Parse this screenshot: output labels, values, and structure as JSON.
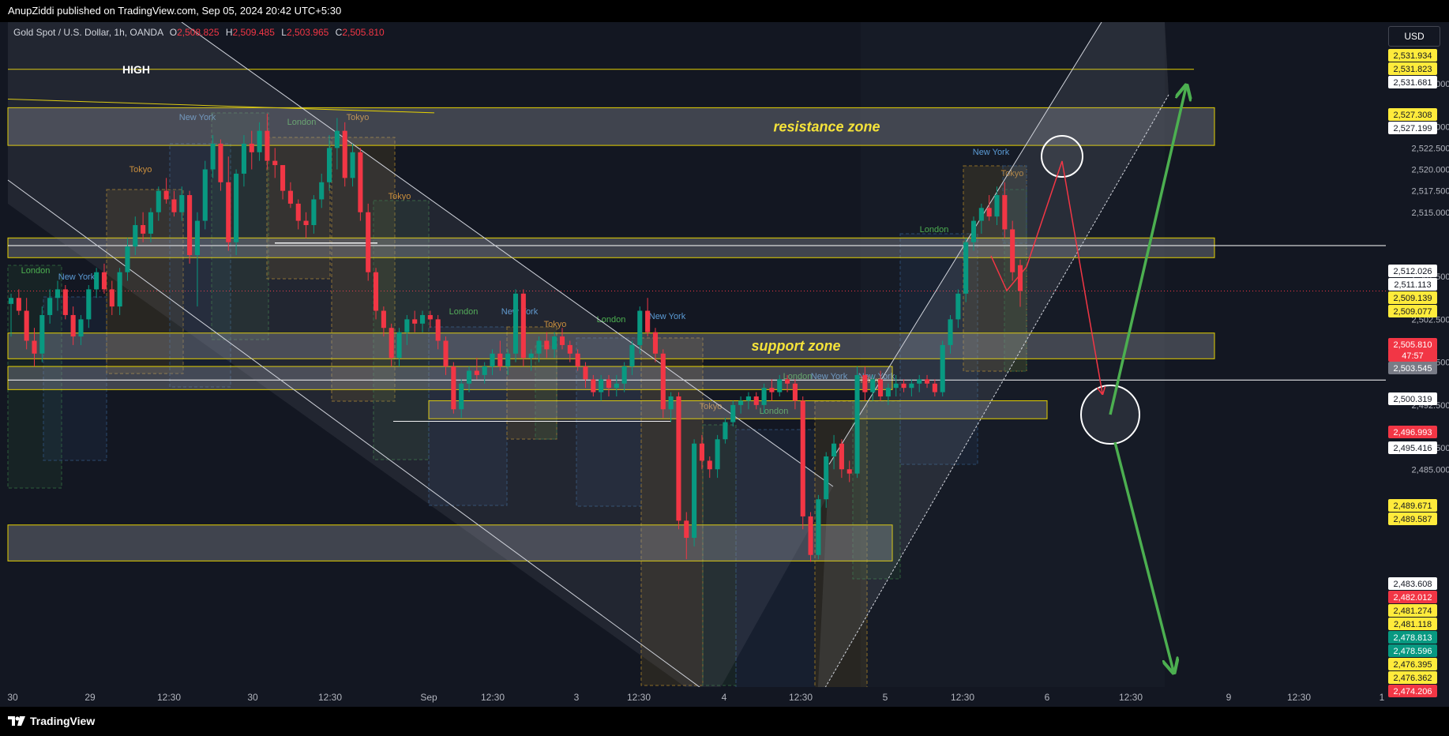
{
  "header": {
    "published_text": "AnupZiddi published on TradingView.com, Sep 05, 2024 20:42 UTC+5:30"
  },
  "symbol_bar": {
    "title": "Gold Spot / U.S. Dollar, 1h, OANDA",
    "open_label": "O",
    "open": "2,508.825",
    "high_label": "H",
    "high": "2,509.485",
    "low_label": "L",
    "low": "2,503.965",
    "close_label": "C",
    "close": "2,505.810"
  },
  "currency": "USD",
  "footer": {
    "brand": "TradingView"
  },
  "colors": {
    "background": "#131722",
    "up": "#089981",
    "down": "#f23645",
    "zone_border": "#e6d200",
    "annotation_text": "#f5e33a",
    "arrow_green": "#4caf50",
    "arrow_red": "#f23645"
  },
  "chart_data": {
    "type": "candlestick",
    "symbol": "Gold Spot / U.S. Dollar",
    "interval": "1h",
    "exchange": "OANDA",
    "y_ticks": [
      "2,530.000",
      "2,525.000",
      "2,522.500",
      "2,520.000",
      "2,517.500",
      "2,515.000",
      "2,507.500",
      "2,502.500",
      "2,497.500",
      "2,492.500",
      "2,487.500",
      "2,485.000"
    ],
    "x_ticks": [
      "30",
      "29",
      "12:30",
      "30",
      "12:30",
      "Sep",
      "12:30",
      "3",
      "12:30",
      "4",
      "12:30",
      "5",
      "12:30",
      "6",
      "12:30",
      "9",
      "12:30",
      "1"
    ],
    "price_labels": [
      {
        "text": "2,531.934",
        "style": "yellow"
      },
      {
        "text": "2,531.823",
        "style": "yellow"
      },
      {
        "text": "2,531.681",
        "style": "white"
      },
      {
        "text": "2,527.308",
        "style": "yellow"
      },
      {
        "text": "2,527.199",
        "style": "white"
      },
      {
        "text": "2,512.026",
        "style": "white"
      },
      {
        "text": "2,511.113",
        "style": "white"
      },
      {
        "text": "2,509.139",
        "style": "yellow"
      },
      {
        "text": "2,509.077",
        "style": "yellow"
      },
      {
        "text": "2,505.810",
        "style": "red"
      },
      {
        "text": "47:57",
        "style": "red"
      },
      {
        "text": "2,503.545",
        "style": "gray"
      },
      {
        "text": "2,500.319",
        "style": "white"
      },
      {
        "text": "2,496.993",
        "style": "red"
      },
      {
        "text": "2,495.416",
        "style": "white"
      },
      {
        "text": "2,489.671",
        "style": "yellow"
      },
      {
        "text": "2,489.587",
        "style": "yellow"
      },
      {
        "text": "2,483.608",
        "style": "white"
      },
      {
        "text": "2,482.012",
        "style": "red"
      },
      {
        "text": "2,481.274",
        "style": "yellow"
      },
      {
        "text": "2,481.118",
        "style": "yellow"
      },
      {
        "text": "2,478.813",
        "style": "green"
      },
      {
        "text": "2,478.596",
        "style": "green"
      },
      {
        "text": "2,476.395",
        "style": "yellow"
      },
      {
        "text": "2,476.362",
        "style": "yellow"
      },
      {
        "text": "2,474.206",
        "style": "red"
      }
    ],
    "zones": [
      {
        "name": "resistance zone",
        "top": 2527.2,
        "bottom": 2522.8,
        "label": "resistance zone"
      },
      {
        "name": "mid zone",
        "top": 2512.0,
        "bottom": 2509.7,
        "label": ""
      },
      {
        "name": "support zone",
        "top": 2500.9,
        "bottom": 2497.9,
        "label": "support zone"
      },
      {
        "name": "lower band",
        "top": 2497.0,
        "bottom": 2494.3,
        "label": ""
      },
      {
        "name": "low zone 1",
        "top": 2493.0,
        "bottom": 2490.9,
        "label": ""
      },
      {
        "name": "bottom zone",
        "top": 2478.5,
        "bottom": 2474.3,
        "label": ""
      }
    ],
    "annotations": {
      "high_label": "HIGH",
      "resistance_label": "resistance zone",
      "support_label": "support zone"
    },
    "sessions": [
      {
        "label": "London",
        "kind": "london"
      },
      {
        "label": "New York",
        "kind": "newyork"
      },
      {
        "label": "Tokyo",
        "kind": "tokyo"
      },
      {
        "label": "New York",
        "kind": "newyork"
      },
      {
        "label": "London",
        "kind": "london"
      },
      {
        "label": "Tokyo",
        "kind": "tokyo"
      },
      {
        "label": "Tokyo",
        "kind": "tokyo"
      },
      {
        "label": "London",
        "kind": "london"
      },
      {
        "label": "New York",
        "kind": "newyork"
      },
      {
        "label": "Tokyo",
        "kind": "tokyo"
      },
      {
        "label": "London",
        "kind": "london"
      },
      {
        "label": "New York",
        "kind": "newyork"
      },
      {
        "label": "Tokyo",
        "kind": "tokyo"
      },
      {
        "label": "London",
        "kind": "london"
      },
      {
        "label": "New York",
        "kind": "newyork"
      },
      {
        "label": "Tokyo",
        "kind": "tokyo"
      },
      {
        "label": "London",
        "kind": "london"
      },
      {
        "label": "New York",
        "kind": "newyork"
      },
      {
        "label": "Tokyo",
        "kind": "tokyo"
      },
      {
        "label": "London",
        "kind": "london"
      },
      {
        "label": "New York",
        "kind": "newyork"
      }
    ],
    "candles": [
      {
        "o": 2504.3,
        "h": 2505.5,
        "l": 2500.5,
        "c": 2505.0
      },
      {
        "o": 2505.0,
        "h": 2506.0,
        "l": 2503.0,
        "c": 2503.5
      },
      {
        "o": 2503.5,
        "h": 2505.0,
        "l": 2499.0,
        "c": 2500.0
      },
      {
        "o": 2500.0,
        "h": 2501.5,
        "l": 2497.0,
        "c": 2498.5
      },
      {
        "o": 2498.5,
        "h": 2504.0,
        "l": 2497.5,
        "c": 2503.0
      },
      {
        "o": 2503.0,
        "h": 2506.0,
        "l": 2502.0,
        "c": 2505.0
      },
      {
        "o": 2505.0,
        "h": 2507.0,
        "l": 2503.5,
        "c": 2506.0
      },
      {
        "o": 2506.0,
        "h": 2506.5,
        "l": 2502.5,
        "c": 2503.0
      },
      {
        "o": 2503.0,
        "h": 2504.0,
        "l": 2499.5,
        "c": 2500.5
      },
      {
        "o": 2500.5,
        "h": 2503.0,
        "l": 2499.5,
        "c": 2502.5
      },
      {
        "o": 2502.5,
        "h": 2506.5,
        "l": 2501.5,
        "c": 2506.0
      },
      {
        "o": 2506.0,
        "h": 2508.5,
        "l": 2505.0,
        "c": 2508.0
      },
      {
        "o": 2508.0,
        "h": 2509.0,
        "l": 2505.5,
        "c": 2506.0
      },
      {
        "o": 2506.0,
        "h": 2507.0,
        "l": 2503.0,
        "c": 2504.0
      },
      {
        "o": 2504.0,
        "h": 2508.5,
        "l": 2503.0,
        "c": 2508.0
      },
      {
        "o": 2508.0,
        "h": 2512.0,
        "l": 2507.0,
        "c": 2511.0
      },
      {
        "o": 2511.0,
        "h": 2514.5,
        "l": 2510.0,
        "c": 2513.5
      },
      {
        "o": 2513.5,
        "h": 2515.0,
        "l": 2511.5,
        "c": 2512.5
      },
      {
        "o": 2512.5,
        "h": 2515.5,
        "l": 2511.5,
        "c": 2515.0
      },
      {
        "o": 2515.0,
        "h": 2518.0,
        "l": 2514.0,
        "c": 2517.5
      },
      {
        "o": 2517.5,
        "h": 2519.0,
        "l": 2516.0,
        "c": 2516.5
      },
      {
        "o": 2516.5,
        "h": 2517.5,
        "l": 2514.5,
        "c": 2515.0
      },
      {
        "o": 2515.0,
        "h": 2518.0,
        "l": 2514.0,
        "c": 2517.0
      },
      {
        "o": 2517.0,
        "h": 2517.5,
        "l": 2509.0,
        "c": 2510.0
      },
      {
        "o": 2510.0,
        "h": 2515.0,
        "l": 2504.0,
        "c": 2514.0
      },
      {
        "o": 2514.0,
        "h": 2521.0,
        "l": 2513.0,
        "c": 2520.0
      },
      {
        "o": 2520.0,
        "h": 2524.0,
        "l": 2519.0,
        "c": 2523.0
      },
      {
        "o": 2523.0,
        "h": 2523.5,
        "l": 2517.5,
        "c": 2518.5
      },
      {
        "o": 2518.5,
        "h": 2521.5,
        "l": 2510.5,
        "c": 2511.5
      },
      {
        "o": 2511.5,
        "h": 2520.0,
        "l": 2510.0,
        "c": 2519.5
      },
      {
        "o": 2519.5,
        "h": 2524.0,
        "l": 2518.0,
        "c": 2523.0
      },
      {
        "o": 2523.0,
        "h": 2524.5,
        "l": 2520.0,
        "c": 2522.0
      },
      {
        "o": 2522.0,
        "h": 2525.5,
        "l": 2521.0,
        "c": 2524.5
      },
      {
        "o": 2524.5,
        "h": 2526.5,
        "l": 2520.0,
        "c": 2521.0
      },
      {
        "o": 2521.0,
        "h": 2522.5,
        "l": 2519.0,
        "c": 2520.5
      },
      {
        "o": 2520.5,
        "h": 2520.5,
        "l": 2516.5,
        "c": 2517.5
      },
      {
        "o": 2517.5,
        "h": 2518.5,
        "l": 2515.5,
        "c": 2516.0
      },
      {
        "o": 2516.0,
        "h": 2516.5,
        "l": 2513.0,
        "c": 2514.0
      },
      {
        "o": 2514.0,
        "h": 2515.0,
        "l": 2512.0,
        "c": 2513.5
      },
      {
        "o": 2513.5,
        "h": 2517.0,
        "l": 2512.5,
        "c": 2516.5
      },
      {
        "o": 2516.5,
        "h": 2519.5,
        "l": 2515.5,
        "c": 2518.5
      },
      {
        "o": 2518.5,
        "h": 2524.0,
        "l": 2517.5,
        "c": 2522.5
      },
      {
        "o": 2522.5,
        "h": 2526.0,
        "l": 2520.0,
        "c": 2524.5
      },
      {
        "o": 2524.5,
        "h": 2525.5,
        "l": 2518.0,
        "c": 2519.0
      },
      {
        "o": 2519.0,
        "h": 2523.0,
        "l": 2518.0,
        "c": 2522.0
      },
      {
        "o": 2522.0,
        "h": 2522.5,
        "l": 2514.0,
        "c": 2515.0
      },
      {
        "o": 2515.0,
        "h": 2516.0,
        "l": 2507.0,
        "c": 2508.0
      },
      {
        "o": 2508.0,
        "h": 2508.5,
        "l": 2502.5,
        "c": 2503.5
      },
      {
        "o": 2503.5,
        "h": 2504.0,
        "l": 2500.5,
        "c": 2501.5
      },
      {
        "o": 2501.5,
        "h": 2502.0,
        "l": 2497.0,
        "c": 2498.0
      },
      {
        "o": 2498.0,
        "h": 2501.5,
        "l": 2497.0,
        "c": 2501.0
      },
      {
        "o": 2501.0,
        "h": 2503.0,
        "l": 2499.5,
        "c": 2502.5
      },
      {
        "o": 2502.5,
        "h": 2503.5,
        "l": 2501.0,
        "c": 2502.0
      },
      {
        "o": 2502.0,
        "h": 2503.5,
        "l": 2501.0,
        "c": 2503.0
      },
      {
        "o": 2503.0,
        "h": 2503.5,
        "l": 2501.5,
        "c": 2502.5
      },
      {
        "o": 2502.5,
        "h": 2503.0,
        "l": 2499.0,
        "c": 2500.0
      },
      {
        "o": 2500.0,
        "h": 2500.5,
        "l": 2496.0,
        "c": 2497.0
      },
      {
        "o": 2497.0,
        "h": 2497.5,
        "l": 2491.5,
        "c": 2492.0
      },
      {
        "o": 2492.0,
        "h": 2495.5,
        "l": 2491.0,
        "c": 2495.0
      },
      {
        "o": 2495.0,
        "h": 2497.0,
        "l": 2494.0,
        "c": 2496.5
      },
      {
        "o": 2496.5,
        "h": 2498.0,
        "l": 2495.5,
        "c": 2496.0
      },
      {
        "o": 2496.0,
        "h": 2497.5,
        "l": 2495.0,
        "c": 2497.0
      },
      {
        "o": 2497.0,
        "h": 2499.0,
        "l": 2496.0,
        "c": 2498.5
      },
      {
        "o": 2498.5,
        "h": 2500.0,
        "l": 2496.5,
        "c": 2497.0
      },
      {
        "o": 2497.0,
        "h": 2499.0,
        "l": 2496.0,
        "c": 2498.5
      },
      {
        "o": 2498.5,
        "h": 2506.0,
        "l": 2497.5,
        "c": 2505.5
      },
      {
        "o": 2505.5,
        "h": 2506.0,
        "l": 2497.0,
        "c": 2498.0
      },
      {
        "o": 2498.0,
        "h": 2499.0,
        "l": 2496.5,
        "c": 2498.5
      },
      {
        "o": 2498.5,
        "h": 2500.5,
        "l": 2497.5,
        "c": 2500.0
      },
      {
        "o": 2500.0,
        "h": 2501.0,
        "l": 2498.0,
        "c": 2499.0
      },
      {
        "o": 2499.0,
        "h": 2501.0,
        "l": 2498.0,
        "c": 2500.5
      },
      {
        "o": 2500.5,
        "h": 2501.5,
        "l": 2499.0,
        "c": 2499.5
      },
      {
        "o": 2499.5,
        "h": 2500.0,
        "l": 2497.5,
        "c": 2498.5
      },
      {
        "o": 2498.5,
        "h": 2499.0,
        "l": 2496.5,
        "c": 2497.0
      },
      {
        "o": 2497.0,
        "h": 2497.5,
        "l": 2494.5,
        "c": 2495.5
      },
      {
        "o": 2495.5,
        "h": 2496.0,
        "l": 2493.5,
        "c": 2494.0
      },
      {
        "o": 2494.0,
        "h": 2496.0,
        "l": 2493.0,
        "c": 2495.5
      },
      {
        "o": 2495.5,
        "h": 2496.0,
        "l": 2493.5,
        "c": 2494.5
      },
      {
        "o": 2494.5,
        "h": 2496.0,
        "l": 2493.5,
        "c": 2495.0
      },
      {
        "o": 2495.0,
        "h": 2497.5,
        "l": 2494.0,
        "c": 2497.0
      },
      {
        "o": 2497.0,
        "h": 2500.0,
        "l": 2496.0,
        "c": 2499.5
      },
      {
        "o": 2499.5,
        "h": 2504.0,
        "l": 2498.5,
        "c": 2503.5
      },
      {
        "o": 2503.5,
        "h": 2505.0,
        "l": 2500.5,
        "c": 2501.0
      },
      {
        "o": 2501.0,
        "h": 2501.5,
        "l": 2497.5,
        "c": 2498.5
      },
      {
        "o": 2498.5,
        "h": 2499.0,
        "l": 2491.0,
        "c": 2492.0
      },
      {
        "o": 2492.0,
        "h": 2494.0,
        "l": 2490.5,
        "c": 2493.5
      },
      {
        "o": 2493.5,
        "h": 2494.0,
        "l": 2478.0,
        "c": 2479.0
      },
      {
        "o": 2479.0,
        "h": 2480.0,
        "l": 2474.5,
        "c": 2477.0
      },
      {
        "o": 2477.0,
        "h": 2488.5,
        "l": 2476.0,
        "c": 2488.0
      },
      {
        "o": 2488.0,
        "h": 2489.0,
        "l": 2485.0,
        "c": 2486.0
      },
      {
        "o": 2486.0,
        "h": 2486.5,
        "l": 2484.0,
        "c": 2485.0
      },
      {
        "o": 2485.0,
        "h": 2489.0,
        "l": 2484.0,
        "c": 2488.5
      },
      {
        "o": 2488.5,
        "h": 2491.0,
        "l": 2488.0,
        "c": 2490.5
      },
      {
        "o": 2490.5,
        "h": 2493.0,
        "l": 2490.0,
        "c": 2492.5
      },
      {
        "o": 2492.5,
        "h": 2493.5,
        "l": 2491.5,
        "c": 2493.0
      },
      {
        "o": 2493.0,
        "h": 2494.0,
        "l": 2492.0,
        "c": 2493.5
      },
      {
        "o": 2493.5,
        "h": 2494.0,
        "l": 2492.0,
        "c": 2492.5
      },
      {
        "o": 2492.5,
        "h": 2495.0,
        "l": 2491.5,
        "c": 2494.5
      },
      {
        "o": 2494.5,
        "h": 2495.5,
        "l": 2493.0,
        "c": 2494.0
      },
      {
        "o": 2494.0,
        "h": 2496.0,
        "l": 2493.5,
        "c": 2495.5
      },
      {
        "o": 2495.5,
        "h": 2496.0,
        "l": 2494.0,
        "c": 2495.0
      },
      {
        "o": 2495.0,
        "h": 2495.5,
        "l": 2492.0,
        "c": 2493.0
      },
      {
        "o": 2493.0,
        "h": 2493.5,
        "l": 2478.0,
        "c": 2479.5
      },
      {
        "o": 2479.5,
        "h": 2480.0,
        "l": 2474.2,
        "c": 2475.0
      },
      {
        "o": 2475.0,
        "h": 2482.0,
        "l": 2474.5,
        "c": 2481.5
      },
      {
        "o": 2481.5,
        "h": 2487.0,
        "l": 2480.5,
        "c": 2486.5
      },
      {
        "o": 2486.5,
        "h": 2489.0,
        "l": 2485.0,
        "c": 2488.0
      },
      {
        "o": 2488.0,
        "h": 2488.5,
        "l": 2484.0,
        "c": 2485.0
      },
      {
        "o": 2485.0,
        "h": 2486.0,
        "l": 2483.5,
        "c": 2484.5
      },
      {
        "o": 2484.5,
        "h": 2497.0,
        "l": 2484.0,
        "c": 2496.0
      },
      {
        "o": 2496.0,
        "h": 2497.0,
        "l": 2493.0,
        "c": 2494.0
      },
      {
        "o": 2494.0,
        "h": 2496.0,
        "l": 2493.0,
        "c": 2495.5
      },
      {
        "o": 2495.5,
        "h": 2496.5,
        "l": 2493.0,
        "c": 2493.5
      },
      {
        "o": 2493.5,
        "h": 2495.0,
        "l": 2492.5,
        "c": 2494.5
      },
      {
        "o": 2494.5,
        "h": 2496.0,
        "l": 2493.5,
        "c": 2495.0
      },
      {
        "o": 2495.0,
        "h": 2495.5,
        "l": 2494.0,
        "c": 2494.5
      },
      {
        "o": 2494.5,
        "h": 2495.5,
        "l": 2493.5,
        "c": 2495.0
      },
      {
        "o": 2495.0,
        "h": 2496.0,
        "l": 2494.0,
        "c": 2495.5
      },
      {
        "o": 2495.5,
        "h": 2496.0,
        "l": 2494.5,
        "c": 2495.0
      },
      {
        "o": 2495.0,
        "h": 2495.5,
        "l": 2493.5,
        "c": 2494.0
      },
      {
        "o": 2494.0,
        "h": 2500.0,
        "l": 2493.5,
        "c": 2499.5
      },
      {
        "o": 2499.5,
        "h": 2503.0,
        "l": 2498.5,
        "c": 2502.5
      },
      {
        "o": 2502.5,
        "h": 2506.0,
        "l": 2501.5,
        "c": 2505.5
      },
      {
        "o": 2505.5,
        "h": 2512.0,
        "l": 2504.5,
        "c": 2511.5
      },
      {
        "o": 2511.5,
        "h": 2514.5,
        "l": 2510.5,
        "c": 2514.0
      },
      {
        "o": 2514.0,
        "h": 2516.0,
        "l": 2512.5,
        "c": 2515.5
      },
      {
        "o": 2515.5,
        "h": 2517.0,
        "l": 2514.0,
        "c": 2514.5
      },
      {
        "o": 2514.5,
        "h": 2518.0,
        "l": 2513.5,
        "c": 2517.0
      },
      {
        "o": 2517.0,
        "h": 2518.5,
        "l": 2512.0,
        "c": 2513.0
      },
      {
        "o": 2513.0,
        "h": 2514.0,
        "l": 2507.0,
        "c": 2508.0
      },
      {
        "o": 2508.825,
        "h": 2509.485,
        "l": 2503.965,
        "c": 2505.81
      }
    ]
  }
}
